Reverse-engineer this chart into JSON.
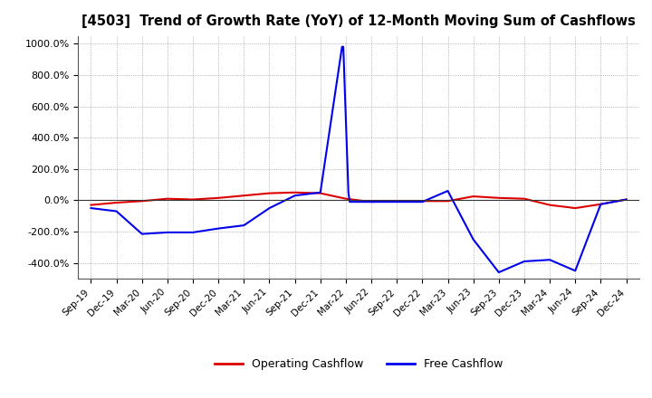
{
  "title": "[4503]  Trend of Growth Rate (YoY) of 12-Month Moving Sum of Cashflows",
  "xlabel": "",
  "ylabel": "",
  "ylim": [
    -500,
    1050
  ],
  "yticks": [
    -400,
    -200,
    0,
    200,
    400,
    600,
    800,
    1000
  ],
  "background_color": "#ffffff",
  "plot_bg_color": "#ffffff",
  "grid_color": "#888888",
  "legend_labels": [
    "Operating Cashflow",
    "Free Cashflow"
  ],
  "legend_colors": [
    "#dd0000",
    "#0000ee"
  ],
  "x_labels": [
    "Sep-19",
    "Dec-19",
    "Mar-20",
    "Jun-20",
    "Sep-20",
    "Dec-20",
    "Mar-21",
    "Jun-21",
    "Sep-21",
    "Dec-21",
    "Mar-22",
    "Jun-22",
    "Sep-22",
    "Dec-22",
    "Mar-23",
    "Jun-23",
    "Sep-23",
    "Dec-23",
    "Mar-24",
    "Jun-24",
    "Sep-24",
    "Dec-24"
  ],
  "operating_cashflow": [
    -30,
    -15,
    -5,
    10,
    5,
    15,
    30,
    45,
    50,
    45,
    10,
    -10,
    -5,
    -5,
    -5,
    25,
    15,
    10,
    -30,
    -50,
    -25,
    5
  ],
  "free_cashflow_x": [
    0,
    1,
    2,
    3,
    4,
    5,
    6,
    7,
    8,
    9,
    9.85,
    9.9,
    10.1,
    10.15,
    11,
    12,
    13,
    14,
    15,
    16,
    17,
    18,
    19,
    20,
    21
  ],
  "free_cashflow_y": [
    -50,
    -70,
    -215,
    -205,
    -205,
    -180,
    -160,
    -50,
    30,
    50,
    980,
    980,
    50,
    -10,
    -10,
    -10,
    -10,
    60,
    -250,
    -460,
    -390,
    -380,
    -450,
    -25,
    5
  ]
}
